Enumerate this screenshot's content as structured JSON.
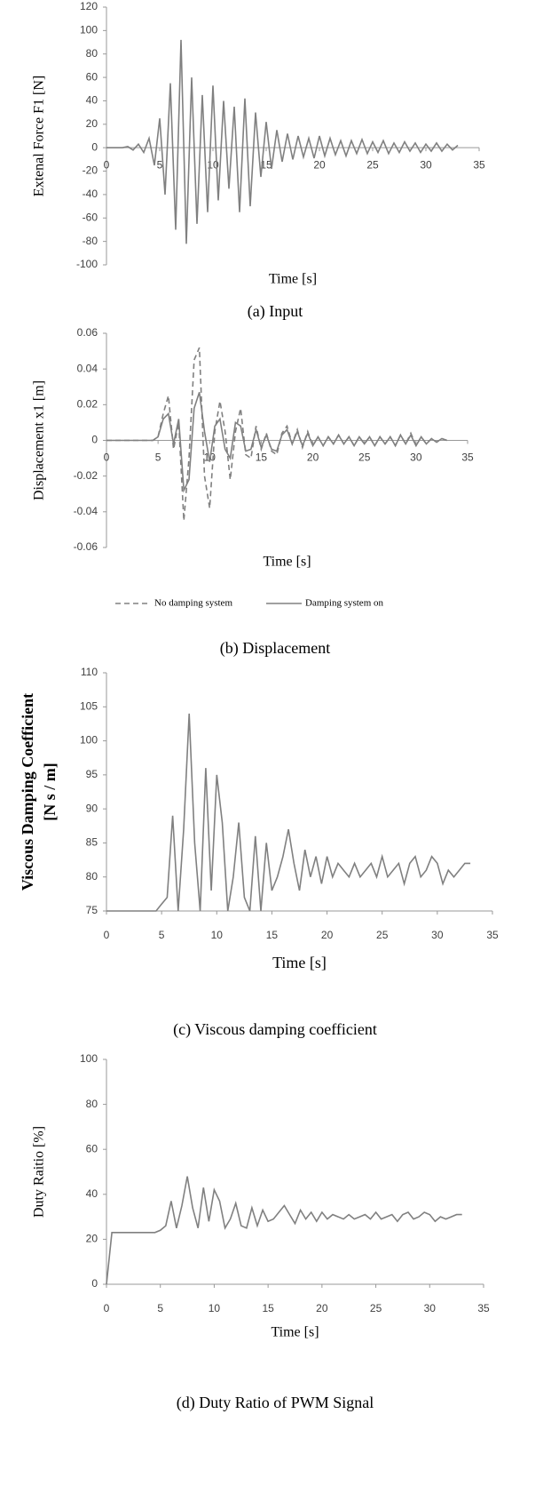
{
  "chart_data": [
    {
      "type": "line",
      "caption": "(a) Input",
      "xlabel": "Time [s]",
      "ylabel": [
        "Extenal Force F1 [N]"
      ],
      "xlim": [
        0,
        35
      ],
      "xticks": [
        0,
        5,
        10,
        15,
        20,
        25,
        30,
        35
      ],
      "ylim": [
        -100,
        120
      ],
      "yticks": [
        -100,
        -80,
        -60,
        -40,
        -20,
        0,
        20,
        40,
        60,
        80,
        100,
        120
      ],
      "x": [
        0,
        0.5,
        1,
        1.5,
        2,
        2.5,
        3,
        3.5,
        4,
        4.5,
        5,
        5.5,
        6,
        6.5,
        7,
        7.5,
        8,
        8.5,
        9,
        9.5,
        10,
        10.5,
        11,
        11.5,
        12,
        12.5,
        13,
        13.5,
        14,
        14.5,
        15,
        15.5,
        16,
        16.5,
        17,
        17.5,
        18,
        18.5,
        19,
        19.5,
        20,
        20.5,
        21,
        21.5,
        22,
        22.5,
        23,
        23.5,
        24,
        24.5,
        25,
        25.5,
        26,
        26.5,
        27,
        27.5,
        28,
        28.5,
        29,
        29.5,
        30,
        30.5,
        31,
        31.5,
        32,
        32.5,
        33
      ],
      "series": [
        {
          "color": "#808080",
          "dashed": false,
          "values": [
            0,
            0,
            0,
            0,
            1,
            -2,
            3,
            -4,
            8,
            -15,
            25,
            -40,
            55,
            -70,
            92,
            -82,
            60,
            -65,
            45,
            -55,
            53,
            -45,
            40,
            -35,
            35,
            -55,
            42,
            -50,
            30,
            -25,
            22,
            -18,
            15,
            -12,
            12,
            -10,
            10,
            -8,
            8,
            -9,
            10,
            -7,
            8,
            -6,
            6,
            -7,
            6,
            -5,
            7,
            -5,
            5,
            -4,
            6,
            -5,
            4,
            -4,
            5,
            -3,
            4,
            -4,
            3,
            -3,
            4,
            -3,
            3,
            -2,
            2
          ]
        }
      ]
    },
    {
      "type": "line",
      "caption": "(b) Displacement",
      "xlabel": "Time [s]",
      "ylabel": [
        "Displacement x1 [m]"
      ],
      "legend": "bottom",
      "xlim": [
        0,
        35
      ],
      "xticks": [
        0,
        5,
        10,
        15,
        20,
        25,
        30,
        35
      ],
      "ylim": [
        -0.06,
        0.06
      ],
      "yticks": [
        -0.06,
        -0.04,
        -0.02,
        0,
        0.02,
        0.04,
        0.06
      ],
      "x": [
        0,
        0.5,
        1,
        1.5,
        2,
        2.5,
        3,
        3.5,
        4,
        4.5,
        5,
        5.5,
        6,
        6.5,
        7,
        7.5,
        8,
        8.5,
        9,
        9.5,
        10,
        10.5,
        11,
        11.5,
        12,
        12.5,
        13,
        13.5,
        14,
        14.5,
        15,
        15.5,
        16,
        16.5,
        17,
        17.5,
        18,
        18.5,
        19,
        19.5,
        20,
        20.5,
        21,
        21.5,
        22,
        22.5,
        23,
        23.5,
        24,
        24.5,
        25,
        25.5,
        26,
        26.5,
        27,
        27.5,
        28,
        28.5,
        29,
        29.5,
        30,
        30.5,
        31,
        31.5,
        32,
        32.5,
        33
      ],
      "series": [
        {
          "name": "No damping system",
          "color": "#808080",
          "dashed": true,
          "values": [
            0,
            0,
            0,
            0,
            0,
            0,
            0,
            0,
            0,
            0,
            0.002,
            0.015,
            0.025,
            -0.005,
            0.01,
            -0.045,
            -0.01,
            0.045,
            0.052,
            -0.02,
            -0.038,
            0.005,
            0.022,
            0.005,
            -0.022,
            0.005,
            0.018,
            -0.008,
            -0.01,
            0.008,
            -0.005,
            0.004,
            -0.006,
            -0.008,
            0.004,
            0.008,
            -0.002,
            0.006,
            -0.004,
            0.005,
            -0.003,
            0.002,
            -0.003,
            0.002,
            -0.002,
            0.003,
            -0.002,
            0.002,
            -0.003,
            0.002,
            -0.002,
            0.002,
            -0.003,
            0.002,
            -0.002,
            0.002,
            -0.003,
            0.003,
            -0.002,
            0.004,
            -0.003,
            0.002,
            -0.002,
            0.001,
            -0.001,
            0.001,
            0
          ]
        },
        {
          "name": "Damping system on",
          "color": "#808080",
          "dashed": false,
          "values": [
            0,
            0,
            0,
            0,
            0,
            0,
            0,
            0,
            0,
            0,
            0.002,
            0.012,
            0.015,
            -0.002,
            0.012,
            -0.028,
            -0.022,
            0.018,
            0.027,
            0.005,
            -0.012,
            0.008,
            0.012,
            -0.005,
            -0.01,
            0.01,
            0.008,
            -0.006,
            -0.005,
            0.006,
            -0.004,
            0.003,
            -0.005,
            -0.006,
            0.003,
            0.006,
            -0.002,
            0.005,
            -0.003,
            0.004,
            -0.003,
            0.002,
            -0.003,
            0.002,
            -0.002,
            0.003,
            -0.002,
            0.002,
            -0.003,
            0.002,
            -0.002,
            0.002,
            -0.003,
            0.002,
            -0.002,
            0.002,
            -0.003,
            0.003,
            -0.002,
            0.003,
            -0.003,
            0.002,
            -0.002,
            0.001,
            -0.001,
            0.001,
            0
          ]
        }
      ]
    },
    {
      "type": "line",
      "caption": "(c) Viscous damping coefficient",
      "xlabel": "Time [s]",
      "ylabel": [
        "Viscous Damping Coefficient",
        "[N s / m]"
      ],
      "xlim": [
        0,
        35
      ],
      "xticks": [
        0,
        5,
        10,
        15,
        20,
        25,
        30,
        35
      ],
      "ylim": [
        75,
        110
      ],
      "yticks": [
        75,
        80,
        85,
        90,
        95,
        100,
        105,
        110
      ],
      "x": [
        0,
        0.5,
        1,
        1.5,
        2,
        2.5,
        3,
        3.5,
        4,
        4.5,
        5,
        5.5,
        6,
        6.5,
        7,
        7.5,
        8,
        8.5,
        9,
        9.5,
        10,
        10.5,
        11,
        11.5,
        12,
        12.5,
        13,
        13.5,
        14,
        14.5,
        15,
        15.5,
        16,
        16.5,
        17,
        17.5,
        18,
        18.5,
        19,
        19.5,
        20,
        20.5,
        21,
        21.5,
        22,
        22.5,
        23,
        23.5,
        24,
        24.5,
        25,
        25.5,
        26,
        26.5,
        27,
        27.5,
        28,
        28.5,
        29,
        29.5,
        30,
        30.5,
        31,
        31.5,
        32,
        32.5,
        33
      ],
      "series": [
        {
          "color": "#808080",
          "dashed": false,
          "values": [
            75,
            75,
            75,
            75,
            75,
            75,
            75,
            75,
            75,
            75,
            76,
            77,
            89,
            75,
            87,
            104,
            85,
            75,
            96,
            78,
            95,
            88,
            75,
            80,
            88,
            77,
            75,
            86,
            75,
            85,
            78,
            80,
            83,
            87,
            82,
            78,
            84,
            80,
            83,
            79,
            83,
            80,
            82,
            81,
            80,
            82,
            80,
            81,
            82,
            80,
            83,
            80,
            81,
            82,
            79,
            82,
            83,
            80,
            81,
            83,
            82,
            79,
            81,
            80,
            81,
            82,
            82
          ]
        }
      ]
    },
    {
      "type": "line",
      "caption": "(d) Duty Ratio of PWM Signal",
      "xlabel": "Time [s]",
      "ylabel": [
        "Duty Raitio [%]"
      ],
      "xlim": [
        0,
        35
      ],
      "xticks": [
        0,
        5,
        10,
        15,
        20,
        25,
        30,
        35
      ],
      "ylim": [
        0,
        100
      ],
      "yticks": [
        0,
        20,
        40,
        60,
        80,
        100
      ],
      "x": [
        0,
        0.5,
        1,
        1.5,
        2,
        2.5,
        3,
        3.5,
        4,
        4.5,
        5,
        5.5,
        6,
        6.5,
        7,
        7.5,
        8,
        8.5,
        9,
        9.5,
        10,
        10.5,
        11,
        11.5,
        12,
        12.5,
        13,
        13.5,
        14,
        14.5,
        15,
        15.5,
        16,
        16.5,
        17,
        17.5,
        18,
        18.5,
        19,
        19.5,
        20,
        20.5,
        21,
        21.5,
        22,
        22.5,
        23,
        23.5,
        24,
        24.5,
        25,
        25.5,
        26,
        26.5,
        27,
        27.5,
        28,
        28.5,
        29,
        29.5,
        30,
        30.5,
        31,
        31.5,
        32,
        32.5,
        33
      ],
      "series": [
        {
          "color": "#808080",
          "dashed": false,
          "values": [
            0,
            23,
            23,
            23,
            23,
            23,
            23,
            23,
            23,
            23,
            24,
            26,
            37,
            25,
            35,
            48,
            34,
            25,
            43,
            28,
            42,
            37,
            25,
            29,
            36,
            26,
            25,
            34,
            26,
            33,
            28,
            29,
            32,
            35,
            31,
            27,
            33,
            29,
            32,
            28,
            32,
            29,
            31,
            30,
            29,
            31,
            29,
            30,
            31,
            29,
            32,
            29,
            30,
            31,
            28,
            31,
            32,
            29,
            30,
            32,
            31,
            28,
            30,
            29,
            30,
            31,
            31
          ]
        }
      ]
    }
  ]
}
